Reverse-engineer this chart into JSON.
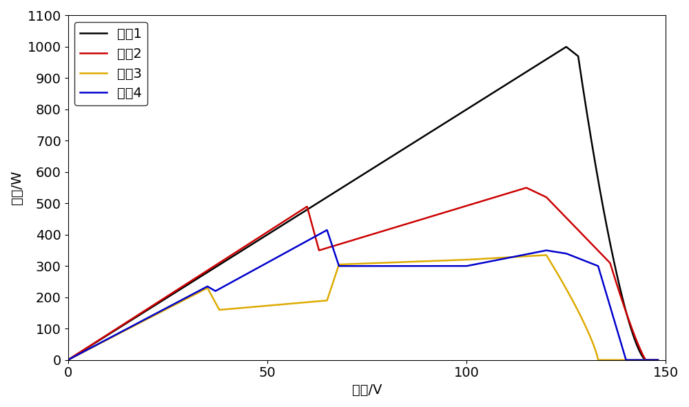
{
  "title": "",
  "xlabel": "电压/V",
  "ylabel": "功率/W",
  "xlim": [
    0,
    150
  ],
  "ylim": [
    0,
    1100
  ],
  "xticks": [
    0,
    50,
    100,
    150
  ],
  "yticks": [
    0,
    100,
    200,
    300,
    400,
    500,
    600,
    700,
    800,
    900,
    1000,
    1100
  ],
  "legend_labels": [
    "案例1",
    "案例2",
    "案例3",
    "案例4"
  ],
  "line_colors": [
    "#000000",
    "#cc0000",
    "#ddaa00",
    "#0000cc"
  ],
  "line_width": 1.8,
  "font_size": 14,
  "background_color": "#ffffff"
}
